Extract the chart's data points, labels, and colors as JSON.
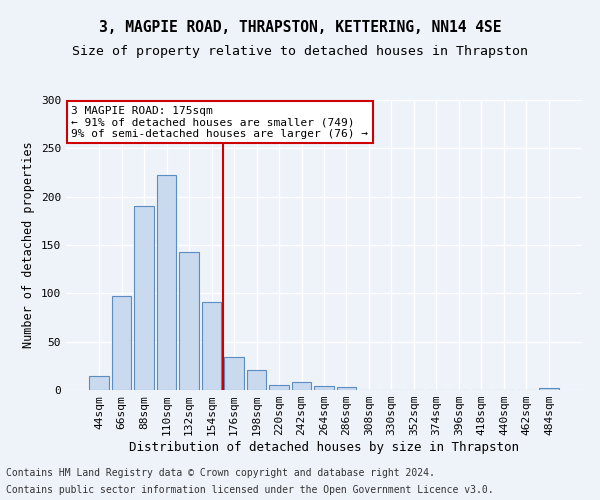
{
  "title1": "3, MAGPIE ROAD, THRAPSTON, KETTERING, NN14 4SE",
  "title2": "Size of property relative to detached houses in Thrapston",
  "xlabel": "Distribution of detached houses by size in Thrapston",
  "ylabel": "Number of detached properties",
  "bar_color": "#c9d9ee",
  "bar_edge_color": "#5b8dc0",
  "categories": [
    "44sqm",
    "66sqm",
    "88sqm",
    "110sqm",
    "132sqm",
    "154sqm",
    "176sqm",
    "198sqm",
    "220sqm",
    "242sqm",
    "264sqm",
    "286sqm",
    "308sqm",
    "330sqm",
    "352sqm",
    "374sqm",
    "396sqm",
    "418sqm",
    "440sqm",
    "462sqm",
    "484sqm"
  ],
  "values": [
    15,
    97,
    190,
    222,
    143,
    91,
    34,
    21,
    5,
    8,
    4,
    3,
    0,
    0,
    0,
    0,
    0,
    0,
    0,
    0,
    2
  ],
  "ylim": [
    0,
    300
  ],
  "yticks": [
    0,
    50,
    100,
    150,
    200,
    250,
    300
  ],
  "annotation_text": "3 MAGPIE ROAD: 175sqm\n← 91% of detached houses are smaller (749)\n9% of semi-detached houses are larger (76) →",
  "annotation_box_color": "#ffffff",
  "annotation_edge_color": "#cc0000",
  "vline_color": "#cc0000",
  "footer1": "Contains HM Land Registry data © Crown copyright and database right 2024.",
  "footer2": "Contains public sector information licensed under the Open Government Licence v3.0.",
  "background_color": "#eef2f9",
  "grid_color": "#ffffff",
  "title1_fontsize": 10.5,
  "title2_fontsize": 9.5,
  "tick_fontsize": 8,
  "xlabel_fontsize": 9,
  "ylabel_fontsize": 8.5,
  "annotation_fontsize": 8,
  "footer_fontsize": 7
}
